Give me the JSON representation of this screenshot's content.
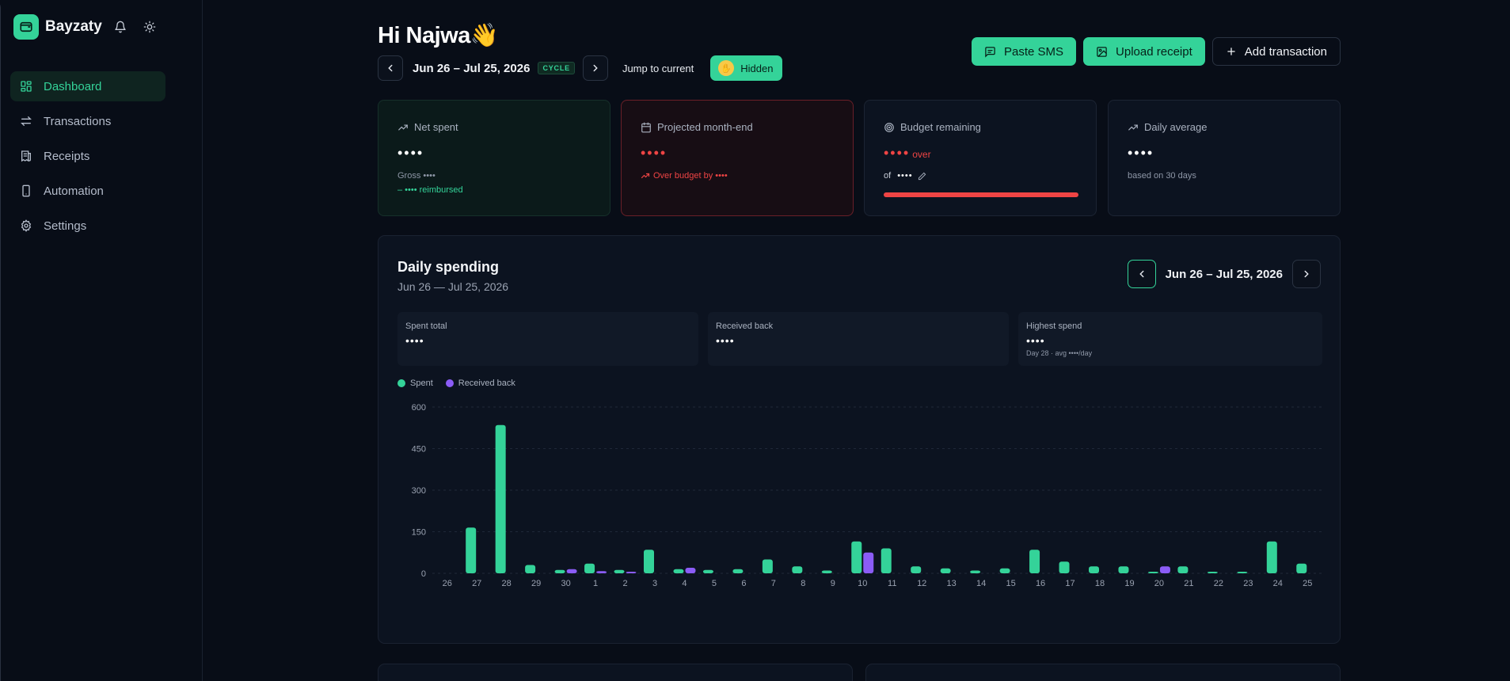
{
  "sidebar": {
    "brand": "Bayzaty",
    "items": [
      {
        "label": "Dashboard",
        "active": true
      },
      {
        "label": "Transactions"
      },
      {
        "label": "Receipts"
      },
      {
        "label": "Automation"
      },
      {
        "label": "Settings"
      }
    ]
  },
  "header": {
    "greeting": "Hi Najwa👋",
    "period": "Jun 26 – Jul 25, 2026",
    "cycle_badge": "CYCLE",
    "jump": "Jump to current",
    "hidden_btn": "Hidden",
    "paste_sms": "Paste SMS",
    "upload_receipt": "Upload receipt",
    "add_transaction": "Add transaction"
  },
  "cards": {
    "net_spent": {
      "title": "Net spent",
      "value": "••••",
      "gross": "Gross ••••",
      "reimbursed": "– •••• reimbursed"
    },
    "projected": {
      "title": "Projected month-end",
      "value": "••••",
      "note": "Over budget by ••••"
    },
    "budget": {
      "title": "Budget remaining",
      "value": "••••",
      "over": "over",
      "of_label": "of",
      "of_value": "••••",
      "progress": 1.0
    },
    "daily_avg": {
      "title": "Daily average",
      "value": "••••",
      "note": "based on 30 days"
    }
  },
  "daily": {
    "title": "Daily spending",
    "subtitle": "Jun 26 — Jul 25, 2026",
    "period": "Jun 26 – Jul 25, 2026",
    "spent_total_label": "Spent total",
    "spent_total_value": "••••",
    "received_label": "Received back",
    "received_value": "••••",
    "highest_label": "Highest spend",
    "highest_value": "••••",
    "highest_note": "Day 28 · avg ••••/day",
    "legend_spent": "Spent",
    "legend_received": "Received back"
  },
  "colors": {
    "accent": "#34d399",
    "received": "#8b5cf6",
    "danger": "#ef4444"
  },
  "chart_data": {
    "type": "bar",
    "categories": [
      "26",
      "27",
      "28",
      "29",
      "30",
      "1",
      "2",
      "3",
      "4",
      "5",
      "6",
      "7",
      "8",
      "9",
      "10",
      "11",
      "12",
      "13",
      "14",
      "15",
      "16",
      "17",
      "18",
      "19",
      "20",
      "21",
      "22",
      "23",
      "24",
      "25"
    ],
    "series": [
      {
        "name": "Spent",
        "values": [
          0,
          165,
          535,
          30,
          12,
          35,
          12,
          85,
          15,
          12,
          15,
          50,
          25,
          10,
          115,
          90,
          25,
          18,
          10,
          18,
          85,
          42,
          25,
          25,
          5,
          25,
          5,
          5,
          115,
          35
        ]
      },
      {
        "name": "Received back",
        "values": [
          0,
          0,
          0,
          0,
          15,
          8,
          5,
          0,
          20,
          0,
          0,
          0,
          0,
          0,
          75,
          0,
          0,
          0,
          0,
          0,
          0,
          0,
          0,
          0,
          25,
          0,
          0,
          0,
          0,
          0
        ]
      }
    ],
    "yticks": [
      0,
      150,
      300,
      450,
      600
    ],
    "ylim": [
      0,
      600
    ],
    "grid": true,
    "legend": "top-left"
  }
}
